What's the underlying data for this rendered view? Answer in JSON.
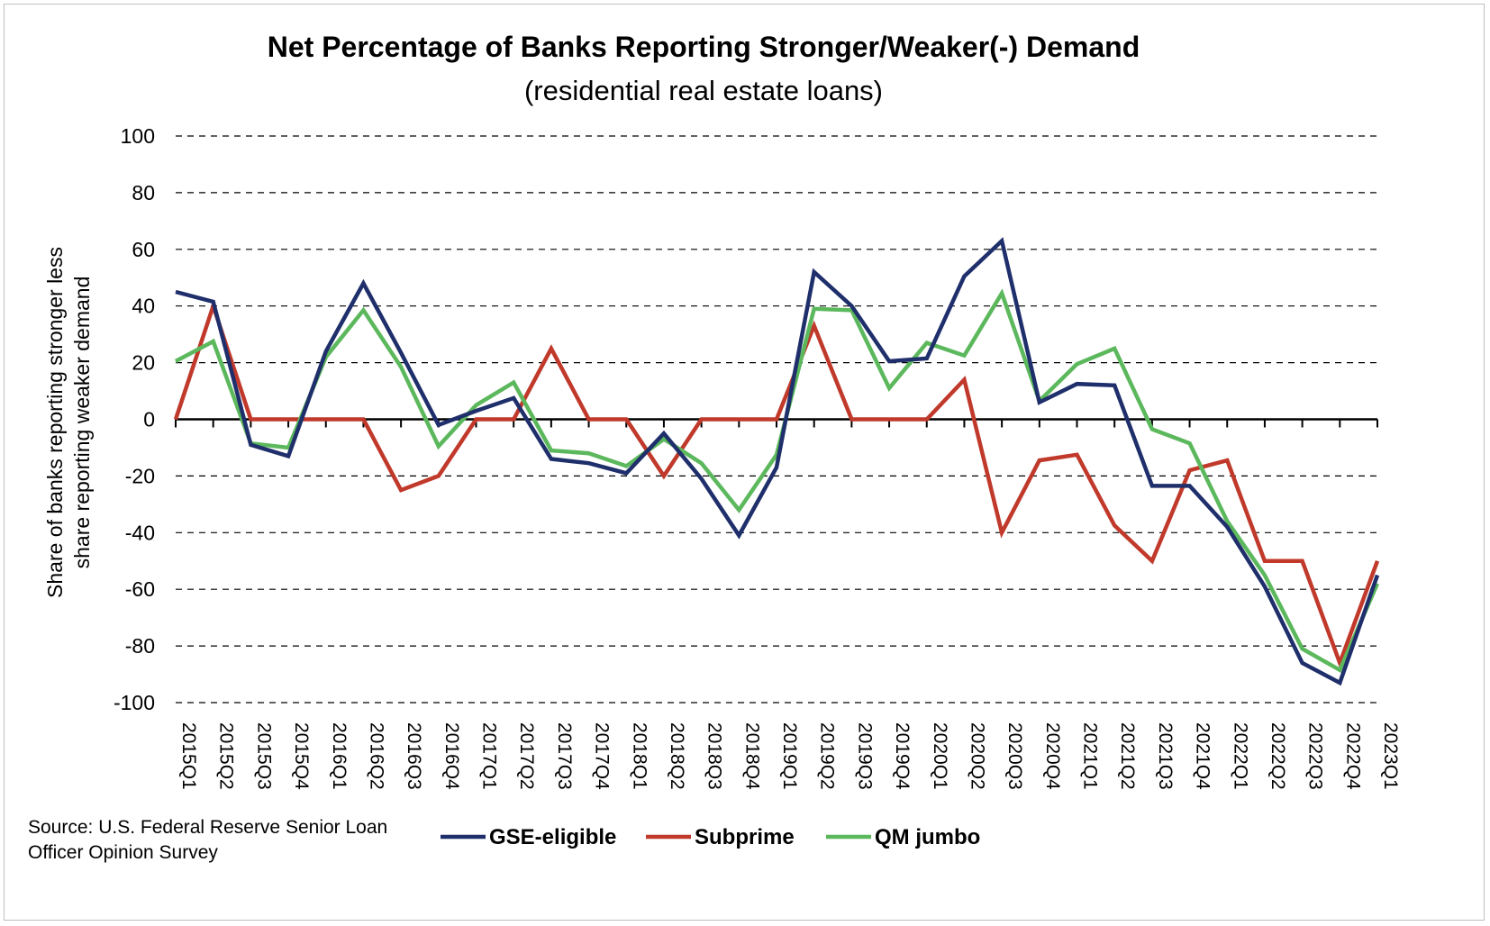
{
  "chart_data": {
    "type": "line",
    "title": "Net Percentage of Banks Reporting Stronger/Weaker(-) Demand",
    "subtitle": "(residential real estate loans)",
    "ylabel_lines": [
      "Share of banks reporting stronger less",
      "share reporting weaker demand"
    ],
    "xlabel": "",
    "ylim": [
      -100,
      100
    ],
    "yticks": [
      100,
      80,
      60,
      40,
      20,
      0,
      -20,
      -40,
      -60,
      -80,
      -100
    ],
    "grid": "horizontal-dashed",
    "legend_position": "bottom",
    "categories": [
      "2015Q1",
      "2015Q2",
      "2015Q3",
      "2015Q4",
      "2016Q1",
      "2016Q2",
      "2016Q3",
      "2016Q4",
      "2017Q1",
      "2017Q2",
      "2017Q3",
      "2017Q4",
      "2018Q1",
      "2018Q2",
      "2018Q3",
      "2018Q4",
      "2019Q1",
      "2019Q2",
      "2019Q3",
      "2019Q4",
      "2020Q1",
      "2020Q2",
      "2020Q3",
      "2020Q4",
      "2021Q1",
      "2021Q2",
      "2021Q3",
      "2021Q4",
      "2022Q1",
      "2022Q2",
      "2022Q3",
      "2022Q4",
      "2023Q1"
    ],
    "series": [
      {
        "name": "GSE-eligible",
        "color": "#1f2f6b",
        "values": [
          45,
          41.5,
          -9,
          -13,
          24,
          48,
          23.5,
          -2,
          3,
          7.5,
          -14,
          -15.5,
          -19,
          -5,
          -21,
          -41,
          -17,
          52,
          40,
          20.5,
          21.5,
          50.5,
          63,
          6,
          12.5,
          12,
          -23.5,
          -23.5,
          -38,
          -59,
          -86,
          -93,
          -55
        ]
      },
      {
        "name": "Subprime",
        "color": "#c0392b",
        "values": [
          0,
          40,
          0,
          0,
          0,
          0,
          -25,
          -20,
          0,
          0,
          25,
          0,
          0,
          -20,
          0,
          0,
          0,
          33,
          0,
          0,
          0,
          14,
          -40,
          -14.5,
          -12.5,
          -37.5,
          -50,
          -18,
          -14.5,
          -50,
          -50,
          -86,
          -50
        ]
      },
      {
        "name": "QM jumbo",
        "color": "#5cb85c",
        "values": [
          20.5,
          27.5,
          -8.5,
          -10,
          22,
          38.5,
          18.5,
          -9.5,
          5,
          13,
          -11,
          -12,
          -16.5,
          -7,
          -15.5,
          -32,
          -12.5,
          39,
          38.5,
          11,
          27,
          22.5,
          44.5,
          6.5,
          19.5,
          25,
          -3.5,
          -8.5,
          -36,
          -55,
          -81,
          -88.5,
          -58
        ]
      }
    ]
  },
  "source_lines": [
    "Source: U.S. Federal Reserve Senior Loan",
    "Officer Opinion Survey"
  ]
}
